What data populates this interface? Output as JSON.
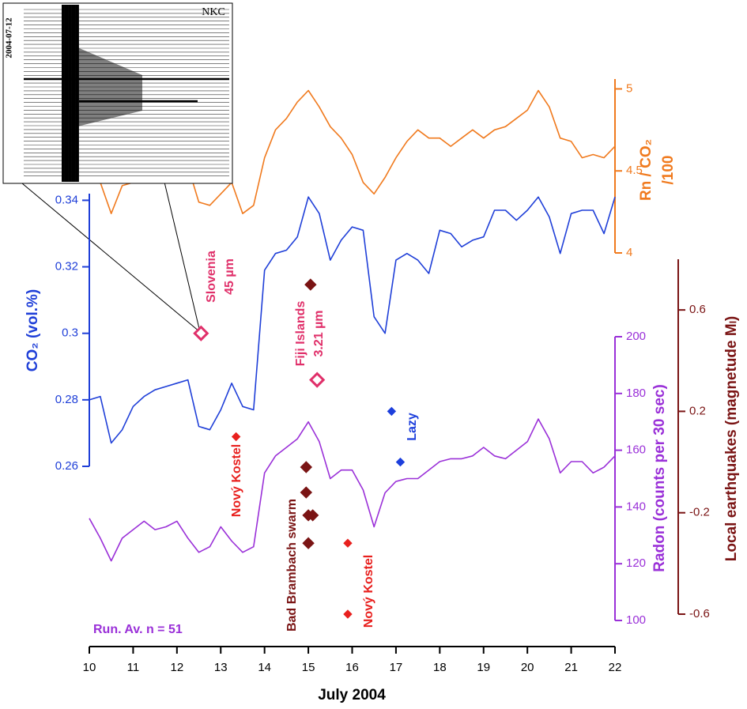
{
  "chart_data": {
    "type": "line",
    "xlabel": "July 2004",
    "xlim": [
      10,
      22
    ],
    "xticks": [
      10,
      11,
      12,
      13,
      14,
      15,
      16,
      17,
      18,
      19,
      20,
      21,
      22
    ],
    "x": [
      10,
      10.25,
      10.5,
      10.75,
      11,
      11.25,
      11.5,
      11.75,
      12,
      12.25,
      12.5,
      12.75,
      13,
      13.25,
      13.5,
      13.75,
      14,
      14.25,
      14.5,
      14.75,
      15,
      15.25,
      15.5,
      15.75,
      16,
      16.25,
      16.5,
      16.75,
      17,
      17.25,
      17.5,
      17.75,
      18,
      18.25,
      18.5,
      18.75,
      19,
      19.25,
      19.5,
      19.75,
      20,
      20.25,
      20.5,
      20.75,
      21,
      21.25,
      21.5,
      21.75,
      22
    ],
    "axes": {
      "co2": {
        "label": "CO₂ (vol.%)",
        "color": "#1f3fd8",
        "ylim": [
          0.26,
          0.342
        ],
        "yticks": [
          0.26,
          0.28,
          0.3,
          0.32,
          0.34
        ]
      },
      "ratio": {
        "label": [
          "Rn / CO₂",
          "/100"
        ],
        "color": "#f07a1e",
        "ylim": [
          4,
          5.06
        ],
        "yticks": [
          4,
          4.5,
          5
        ]
      },
      "radon": {
        "label": "Radon (counts per 30 sec)",
        "color": "#9a30d8",
        "ylim": [
          100,
          200
        ],
        "yticks": [
          100,
          120,
          140,
          160,
          180,
          200
        ]
      },
      "quake": {
        "label": "Local earthquakes (magnetude Mₗ)",
        "color": "#7a1414",
        "ylim": [
          -0.6,
          0.8
        ],
        "yticks": [
          -0.6,
          -0.2,
          0.2,
          0.6
        ]
      }
    },
    "series": [
      {
        "axis": "ratio",
        "color": "#f07a1e",
        "values": [
          4.58,
          4.43,
          4.24,
          4.41,
          4.43,
          4.48,
          4.46,
          4.58,
          4.65,
          4.53,
          4.31,
          4.29,
          4.36,
          4.43,
          4.24,
          4.29,
          4.58,
          4.75,
          4.82,
          4.92,
          4.99,
          4.89,
          4.77,
          4.7,
          4.6,
          4.43,
          4.36,
          4.46,
          4.58,
          4.68,
          4.75,
          4.7,
          4.7,
          4.65,
          4.7,
          4.75,
          4.7,
          4.75,
          4.77,
          4.82,
          4.87,
          4.99,
          4.89,
          4.7,
          4.68,
          4.58,
          4.6,
          4.58,
          4.65
        ]
      },
      {
        "axis": "co2",
        "color": "#1f3fd8",
        "values": [
          0.28,
          0.281,
          0.267,
          0.271,
          0.278,
          0.281,
          0.283,
          0.284,
          0.285,
          0.286,
          0.272,
          0.271,
          0.277,
          0.285,
          0.278,
          0.277,
          0.319,
          0.324,
          0.325,
          0.329,
          0.341,
          0.336,
          0.322,
          0.328,
          0.332,
          0.331,
          0.305,
          0.3,
          0.322,
          0.324,
          0.322,
          0.318,
          0.331,
          0.33,
          0.326,
          0.328,
          0.329,
          0.337,
          0.337,
          0.334,
          0.337,
          0.341,
          0.335,
          0.324,
          0.336,
          0.337,
          0.337,
          0.33,
          0.341
        ]
      },
      {
        "axis": "radon",
        "color": "#9a30d8",
        "values": [
          136,
          129,
          121,
          129,
          132,
          135,
          132,
          133,
          135,
          129,
          124,
          126,
          133,
          128,
          124,
          126,
          152,
          158,
          161,
          164,
          170,
          163,
          150,
          153,
          153,
          146,
          133,
          145,
          149,
          150,
          150,
          153,
          156,
          157,
          157,
          158,
          161,
          158,
          157,
          160,
          163,
          171,
          164,
          152,
          156,
          156,
          152,
          154,
          158
        ]
      }
    ],
    "markers": [
      {
        "axis": "co2",
        "x": 12.55,
        "value": 0.3,
        "color": "#e0306a",
        "open": true
      },
      {
        "axis": "co2",
        "x": 15.2,
        "value": 0.286,
        "color": "#e0306a",
        "open": true
      },
      {
        "axis": "quake",
        "x": 15.05,
        "value": 0.7,
        "color": "#7a1414",
        "open": false
      },
      {
        "axis": "quake",
        "x": 14.95,
        "value": -0.02,
        "color": "#7a1414",
        "open": false
      },
      {
        "axis": "quake",
        "x": 14.95,
        "value": -0.12,
        "color": "#7a1414",
        "open": false
      },
      {
        "axis": "quake",
        "x": 15.0,
        "value": -0.21,
        "color": "#7a1414",
        "open": false
      },
      {
        "axis": "quake",
        "x": 15.1,
        "value": -0.21,
        "color": "#7a1414",
        "open": false
      },
      {
        "axis": "quake",
        "x": 15.0,
        "value": -0.32,
        "color": "#7a1414",
        "open": false
      },
      {
        "axis": "quake",
        "x": 13.35,
        "value": 0.1,
        "color": "#e8201e",
        "open": false
      },
      {
        "axis": "quake",
        "x": 15.9,
        "value": -0.32,
        "color": "#e8201e",
        "open": false
      },
      {
        "axis": "quake",
        "x": 15.9,
        "value": -0.6,
        "color": "#e8201e",
        "open": false
      },
      {
        "axis": "quake",
        "x": 16.9,
        "value": 0.2,
        "color": "#1d3fdc",
        "open": false
      },
      {
        "axis": "quake",
        "x": 17.1,
        "value": 0.0,
        "color": "#1d3fdc",
        "open": false
      }
    ],
    "annotations": [
      {
        "lines": [
          "Slovenia",
          "45 µm"
        ],
        "color": "#e0306a",
        "rotated": true
      },
      {
        "lines": [
          "Fiji Islands",
          "3.21 µm"
        ],
        "color": "#e0306a",
        "rotated": true
      },
      {
        "lines": [
          "Nový Kostel"
        ],
        "color": "#e8201e",
        "rotated": true
      },
      {
        "lines": [
          "Bad Brambach swarm"
        ],
        "color": "#7a1414",
        "rotated": true
      },
      {
        "lines": [
          "Nový Kostel"
        ],
        "color": "#e8201e",
        "rotated": true
      },
      {
        "lines": [
          "Lazy"
        ],
        "color": "#1d3fdc",
        "rotated": true
      },
      {
        "lines": [
          "Run. Av. n = 51"
        ],
        "color": "#9a30d8",
        "rotated": false
      }
    ],
    "inset": {
      "station": "NKC",
      "date": "2004-07-12"
    }
  }
}
